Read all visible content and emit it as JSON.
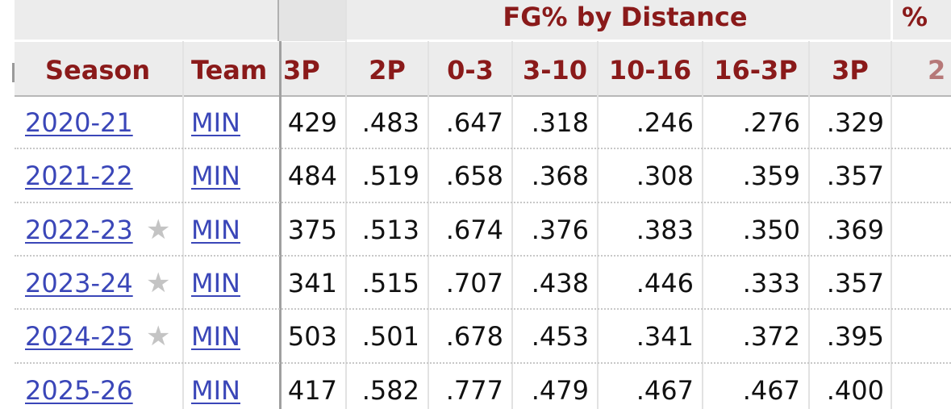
{
  "table": {
    "group_header": "FG% by Distance",
    "group_header_next": "%",
    "columns": {
      "season": "Season",
      "team": "Team",
      "attempts_3p": "3P",
      "fg_2p": "2P",
      "d0_3": "0-3",
      "d3_10": "3-10",
      "d10_16": "10-16",
      "d16_3p": "16-3P",
      "fg_3p": "3P",
      "partial": "2"
    },
    "rows": [
      {
        "season": "2020-21",
        "star": "",
        "team": "MIN",
        "attempts_3p": "429",
        "fg_2p": ".483",
        "d0_3": ".647",
        "d3_10": ".318",
        "d10_16": ".246",
        "d16_3p": ".276",
        "fg_3p": ".329"
      },
      {
        "season": "2021-22",
        "star": "",
        "team": "MIN",
        "attempts_3p": "484",
        "fg_2p": ".519",
        "d0_3": ".658",
        "d3_10": ".368",
        "d10_16": ".308",
        "d16_3p": ".359",
        "fg_3p": ".357"
      },
      {
        "season": "2022-23",
        "star": "★",
        "team": "MIN",
        "attempts_3p": "375",
        "fg_2p": ".513",
        "d0_3": ".674",
        "d3_10": ".376",
        "d10_16": ".383",
        "d16_3p": ".350",
        "fg_3p": ".369"
      },
      {
        "season": "2023-24",
        "star": "★",
        "team": "MIN",
        "attempts_3p": "341",
        "fg_2p": ".515",
        "d0_3": ".707",
        "d3_10": ".438",
        "d10_16": ".446",
        "d16_3p": ".333",
        "fg_3p": ".357"
      },
      {
        "season": "2024-25",
        "star": "★",
        "team": "MIN",
        "attempts_3p": "503",
        "fg_2p": ".501",
        "d0_3": ".678",
        "d3_10": ".453",
        "d10_16": ".341",
        "d16_3p": ".372",
        "fg_3p": ".395"
      },
      {
        "season": "2025-26",
        "star": "",
        "team": "MIN",
        "attempts_3p": "417",
        "fg_2p": ".582",
        "d0_3": ".777",
        "d3_10": ".479",
        "d10_16": ".467",
        "d16_3p": ".467",
        "fg_3p": ".400"
      }
    ]
  },
  "colors": {
    "header_text": "#8a1a1a",
    "header_bg": "#ececec",
    "link": "#3a46b8",
    "star": "#c4c4c4"
  }
}
